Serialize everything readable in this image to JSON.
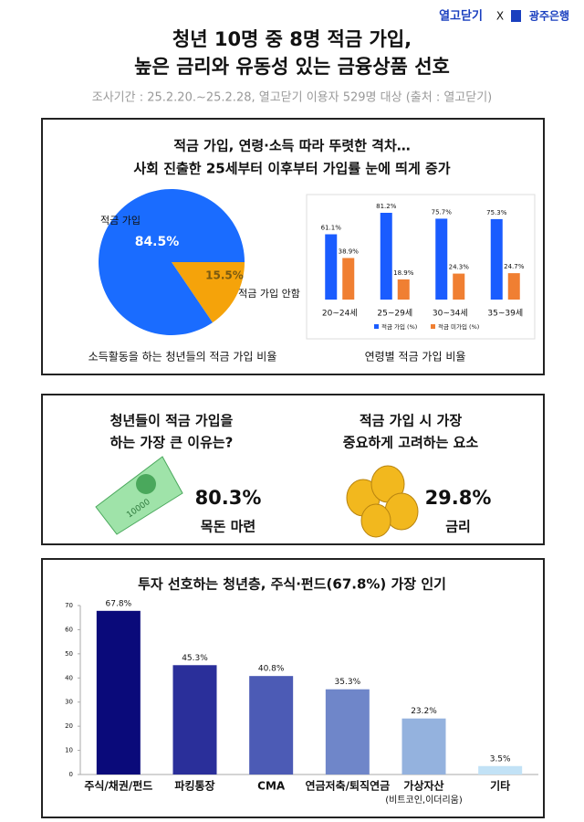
{
  "header": {
    "brand1": "열고닫기",
    "x": "X",
    "brand2": "광주은행",
    "title_lines": [
      "청년 10명 중 8명 적금 가입,",
      "높은 금리와 유동성 있는 금융상품 선호"
    ],
    "survey": "조사기간 : 25.2.20.~25.2.28, 열고닫기 이용자 529명 대상 (출처 : 열고닫기)"
  },
  "section1": {
    "title_lines": [
      "적금 가입, 연령·소득 따라 뚜렷한 격차…",
      "사회 진출한 25세부터 이후부터 가입률 눈에 띄게 증가"
    ]
  },
  "section2": {
    "items": [
      {
        "question_lines": [
          "청년들이 적금 가입을",
          "하는 가장 큰 이유는?"
        ],
        "stat": "80.3%",
        "answer": "목돈 마련",
        "icon_text": "10000"
      },
      {
        "question_lines": [
          "적금 가입 시 가장",
          "중요하게 고려하는 요소"
        ],
        "stat": "29.8%",
        "answer": "금리"
      }
    ]
  },
  "chart_data": [
    {
      "type": "pie",
      "title": "소득활동을 하는 청년들의 적금 가입 비율",
      "categories": [
        "적금 가입",
        "적금 가입 안함"
      ],
      "values": [
        84.5,
        15.5
      ],
      "value_labels": [
        "84.5%",
        "15.5%"
      ],
      "colors": [
        "#1a6cff",
        "#f5a30a"
      ]
    },
    {
      "type": "grouped-bar",
      "title": "연령별 적금 가입 비율",
      "categories": [
        "20~24세",
        "25~29세",
        "30~34세",
        "35~39세"
      ],
      "series": [
        {
          "name": "적금 가입 (%)",
          "color": "#1a5cff",
          "values": [
            61.1,
            81.2,
            75.7,
            75.3
          ],
          "value_labels": [
            "61.1%",
            "81.2%",
            "75.7%",
            "75.3%"
          ]
        },
        {
          "name": "적금 미가입 (%)",
          "color": "#f07f32",
          "values": [
            38.9,
            18.9,
            24.3,
            24.7
          ],
          "value_labels": [
            "38.9%",
            "18.9%",
            "24.3%",
            "24.7%"
          ]
        }
      ]
    },
    {
      "type": "bar",
      "title": "투자 선호하는 청년층, 주식·펀드(67.8%) 가장 인기",
      "categories": [
        "주식/채권/펀드",
        "파킹통장",
        "CMA",
        "연금저축/퇴직연금",
        "가상자산",
        "기타"
      ],
      "category_notes": [
        null,
        null,
        null,
        null,
        "(비트코인,이더리움)",
        null
      ],
      "values": [
        67.8,
        45.3,
        40.8,
        35.3,
        23.2,
        3.5
      ],
      "value_labels": [
        "67.8%",
        "45.3%",
        "40.8%",
        "35.3%",
        "23.2%",
        "3.5%"
      ],
      "colors": [
        "#0a0a7a",
        "#2a2f9a",
        "#4c5bb5",
        "#6f86c9",
        "#94b2de",
        "#c2e2f6"
      ],
      "ylim": [
        0,
        70
      ],
      "yticks": [
        0,
        10,
        20,
        30,
        40,
        50,
        60,
        70
      ]
    }
  ]
}
